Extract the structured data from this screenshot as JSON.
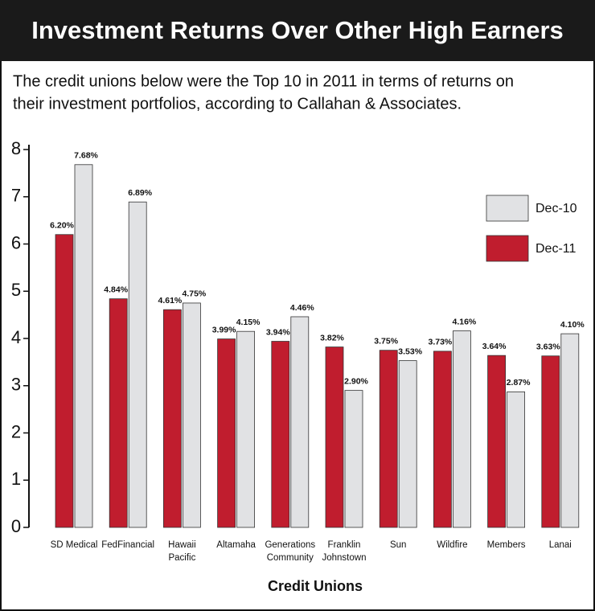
{
  "chart_data": {
    "type": "bar",
    "title": "Investment Returns Over Other High Earners",
    "subtitle": [
      "The credit unions below were the Top 10 in 2011 in terms of returns on",
      "their investment portfolios, according to Callahan & Associates."
    ],
    "x_label": "Credit Unions",
    "categories": [
      [
        "SD Medical"
      ],
      [
        "FedFinancial"
      ],
      [
        "Hawaii",
        "Pacific"
      ],
      [
        "Altamaha"
      ],
      [
        "Generations",
        "Community"
      ],
      [
        "Franklin",
        "Johnstown"
      ],
      [
        "Sun"
      ],
      [
        "Wildfire"
      ],
      [
        "Members"
      ],
      [
        "Lanai"
      ]
    ],
    "series": [
      {
        "name": "Dec-11",
        "color": "#c01d2e",
        "values": [
          6.2,
          4.84,
          4.61,
          3.99,
          3.94,
          3.82,
          3.75,
          3.73,
          3.64,
          3.63
        ],
        "value_labels": [
          "6.20%",
          "4.84%",
          "4.61%",
          "3.99%",
          "3.94%",
          "3.82%",
          "3.75%",
          "3.73%",
          "3.64%",
          "3.63%"
        ]
      },
      {
        "name": "Dec-10",
        "color": "#e1e2e4",
        "values": [
          7.68,
          6.89,
          4.75,
          4.15,
          4.46,
          2.9,
          3.53,
          4.16,
          2.87,
          4.1
        ],
        "value_labels": [
          "7.68%",
          "6.89%",
          "4.75%",
          "4.15%",
          "4.46%",
          "2.90%",
          "3.53%",
          "4.16%",
          "2.87%",
          "4.10%"
        ]
      }
    ],
    "ylim": [
      0,
      8
    ],
    "yticks": [
      0,
      1,
      2,
      3,
      4,
      5,
      6,
      7,
      8
    ],
    "grid": false
  }
}
